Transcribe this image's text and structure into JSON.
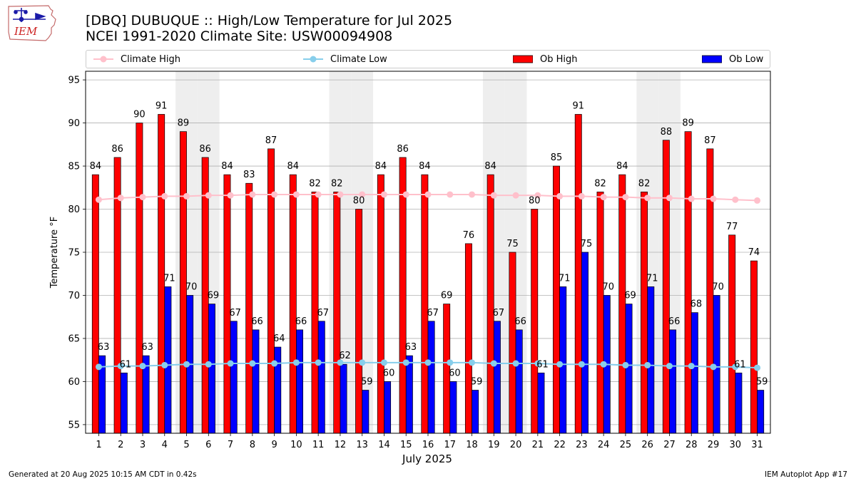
{
  "header": {
    "logo_text": "IEM",
    "title_line1": "[DBQ] DUBUQUE :: High/Low Temperature for Jul 2025",
    "title_line2": "NCEI 1991-2020 Climate Site: USW00094908"
  },
  "footer": {
    "generated": "Generated at 20 Aug 2025 10:15 AM CDT in 0.42s",
    "app": "IEM Autoplot App #17"
  },
  "legend": {
    "items": [
      "Climate High",
      "Climate Low",
      "Ob High",
      "Ob Low"
    ]
  },
  "colors": {
    "ob_high": "#ff0000",
    "ob_low": "#0000ff",
    "climate_high": "#ffc0cb",
    "climate_low": "#87ceeb",
    "weekend_shade": "#eeeeee",
    "grid": "#b0b0b0"
  },
  "chart_data": {
    "type": "bar",
    "xlabel": "July 2025",
    "ylabel": "Temperature °F",
    "ylim": [
      54,
      96
    ],
    "yticks": [
      55,
      60,
      65,
      70,
      75,
      80,
      85,
      90,
      95
    ],
    "grid": true,
    "legend_position": "top",
    "categories": [
      "1",
      "2",
      "3",
      "4",
      "5",
      "6",
      "7",
      "8",
      "9",
      "10",
      "11",
      "12",
      "13",
      "14",
      "15",
      "16",
      "17",
      "18",
      "19",
      "20",
      "21",
      "22",
      "23",
      "24",
      "25",
      "26",
      "27",
      "28",
      "29",
      "30",
      "31"
    ],
    "shaded_days": [
      5,
      6,
      12,
      13,
      19,
      20,
      26,
      27
    ],
    "series": [
      {
        "name": "Ob High",
        "kind": "bar",
        "values": [
          84,
          86,
          90,
          91,
          89,
          86,
          84,
          83,
          87,
          84,
          82,
          82,
          80,
          84,
          86,
          84,
          69,
          76,
          84,
          75,
          80,
          85,
          91,
          82,
          84,
          82,
          88,
          89,
          87,
          77,
          74
        ]
      },
      {
        "name": "Ob Low",
        "kind": "bar",
        "values": [
          63,
          61,
          63,
          71,
          70,
          69,
          67,
          66,
          64,
          66,
          67,
          62,
          59,
          60,
          63,
          67,
          60,
          59,
          67,
          66,
          61,
          71,
          75,
          70,
          69,
          71,
          66,
          68,
          70,
          61,
          59
        ]
      },
      {
        "name": "Climate High",
        "kind": "line",
        "values": [
          81.1,
          81.3,
          81.4,
          81.5,
          81.5,
          81.6,
          81.6,
          81.7,
          81.7,
          81.7,
          81.7,
          81.7,
          81.7,
          81.7,
          81.7,
          81.7,
          81.7,
          81.7,
          81.6,
          81.6,
          81.6,
          81.5,
          81.5,
          81.4,
          81.4,
          81.3,
          81.3,
          81.2,
          81.2,
          81.1,
          81.0
        ]
      },
      {
        "name": "Climate Low",
        "kind": "line",
        "values": [
          61.7,
          61.8,
          61.8,
          61.9,
          62.0,
          62.0,
          62.1,
          62.1,
          62.1,
          62.2,
          62.2,
          62.2,
          62.2,
          62.2,
          62.2,
          62.2,
          62.2,
          62.2,
          62.1,
          62.1,
          62.1,
          62.0,
          62.0,
          62.0,
          61.9,
          61.9,
          61.8,
          61.8,
          61.7,
          61.7,
          61.6
        ]
      }
    ]
  }
}
